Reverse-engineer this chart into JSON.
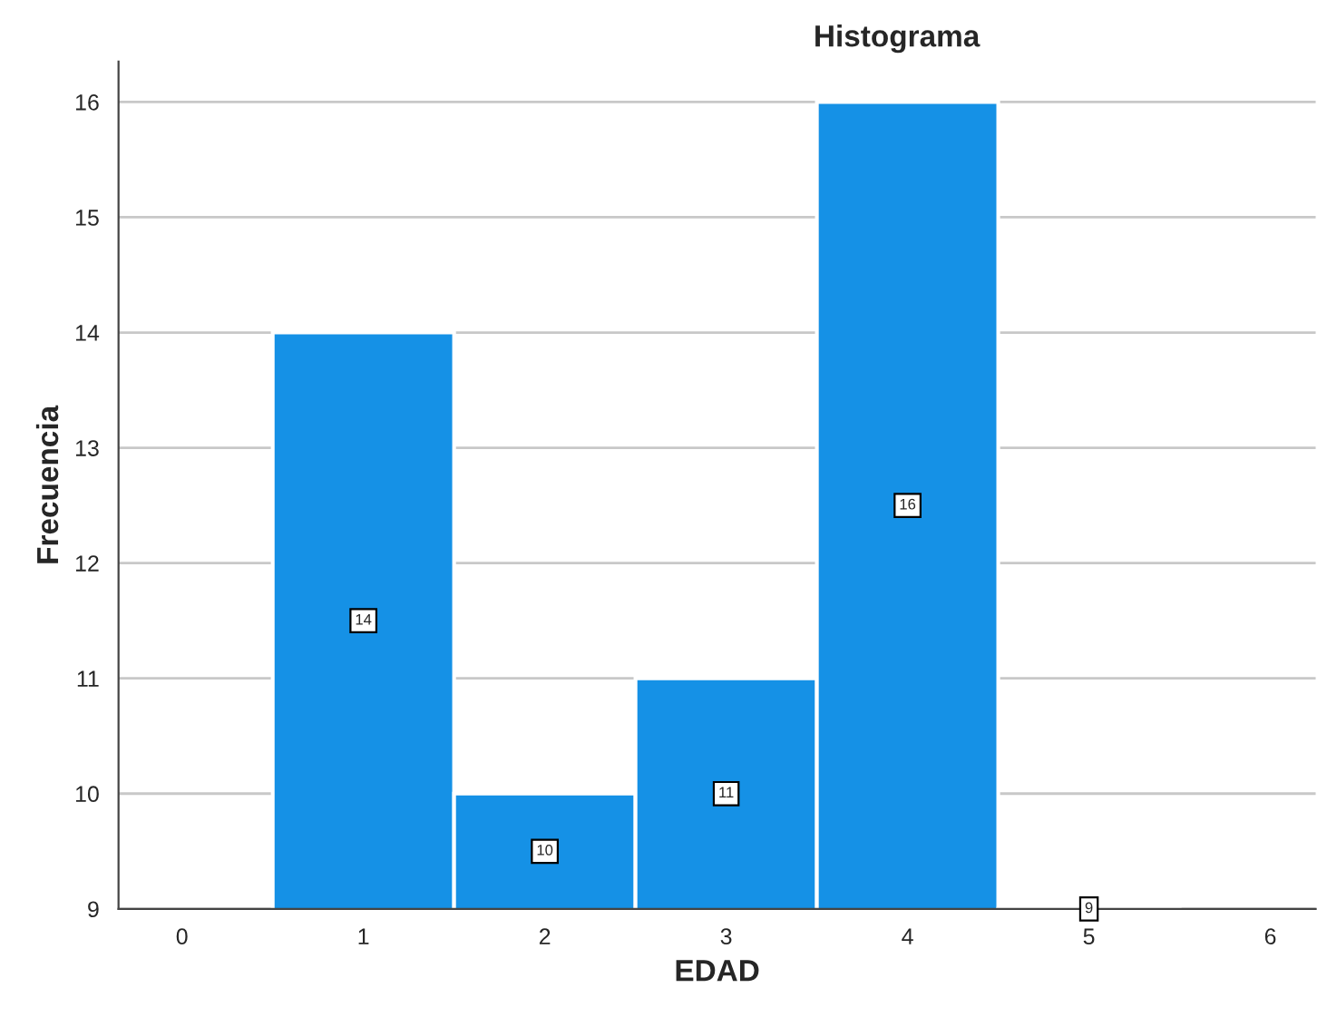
{
  "chart_data": {
    "type": "histogram",
    "title": "Histograma",
    "xlabel": "EDAD",
    "ylabel": "Frecuencia",
    "bins": [
      0.5,
      1.5,
      2.5,
      3.5,
      4.5,
      5.5
    ],
    "values": [
      14,
      10,
      11,
      16,
      9
    ],
    "color": "#1591e6",
    "xlim": [
      -0.35,
      6.25
    ],
    "xticks": [
      0,
      1,
      2,
      3,
      4,
      5,
      6
    ],
    "ylim": [
      9,
      16.35
    ],
    "yticks": [
      9,
      10,
      11,
      12,
      13,
      14,
      15,
      16
    ],
    "grid": "y",
    "data_labels": true
  }
}
